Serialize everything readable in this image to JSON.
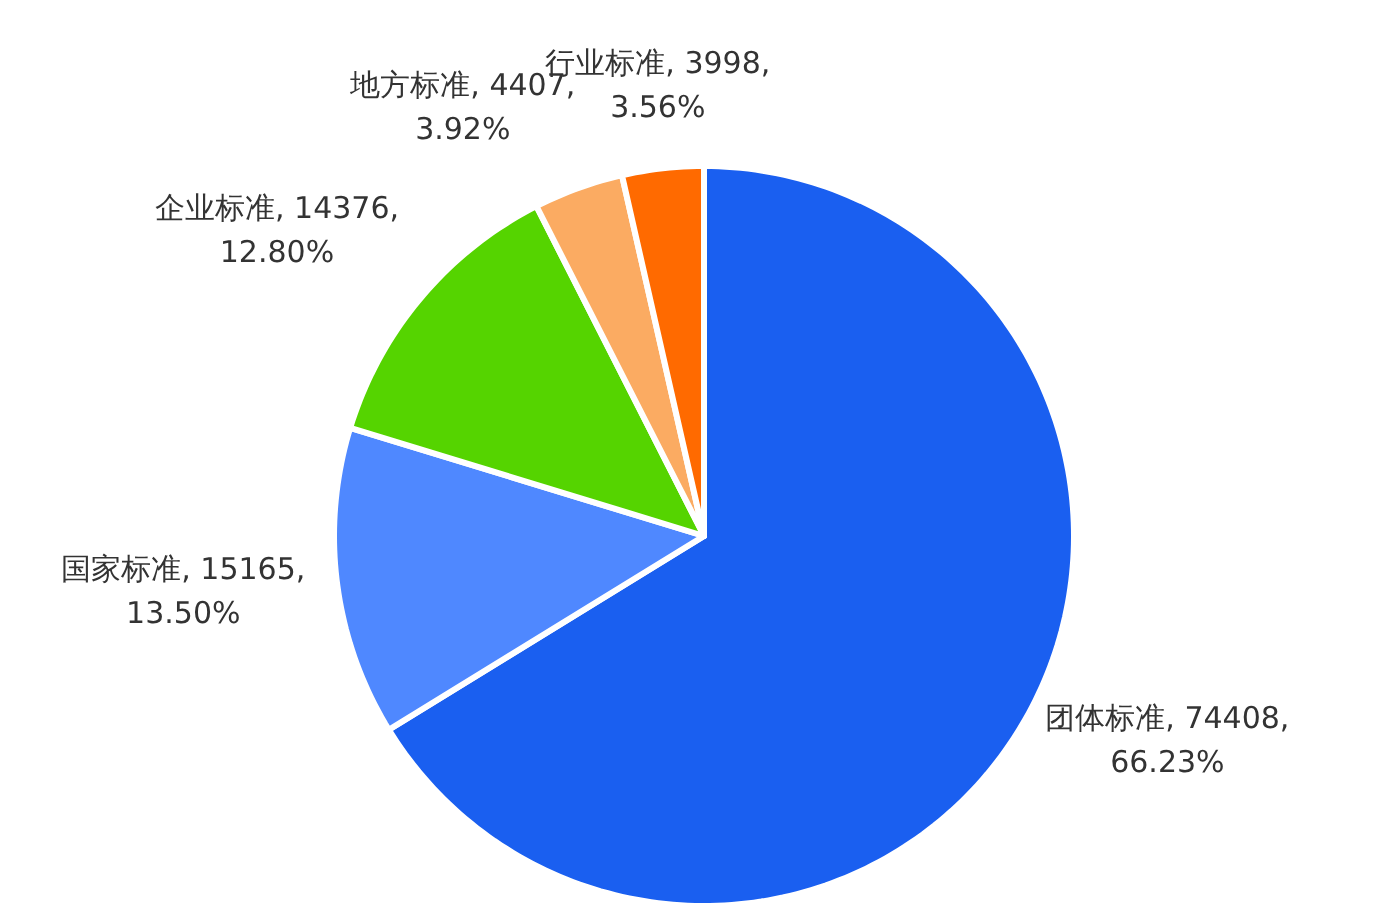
{
  "chart_data": {
    "type": "pie",
    "categories": [
      "团体标准",
      "国家标准",
      "企业标准",
      "地方标准",
      "行业标准"
    ],
    "values": [
      74408,
      15165,
      14376,
      4407,
      3998
    ],
    "value_labels": [
      ", 74408, 66.23%",
      ", 15165, 13.50%",
      ", 14376, 12.80%",
      ", 4407, 3.92%",
      ", 3998, 3.56%"
    ],
    "colors": [
      "#1a5ff0",
      "#4f88ff",
      "#55d400",
      "#fbab62",
      "#ff6a00"
    ]
  }
}
